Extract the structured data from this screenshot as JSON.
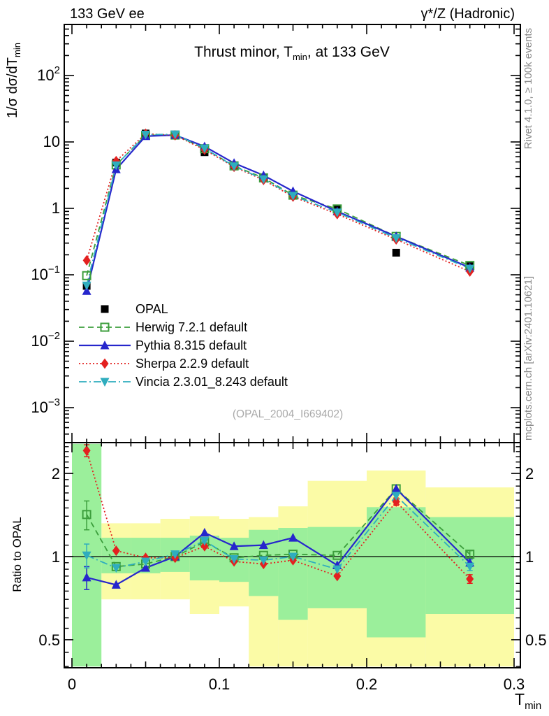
{
  "header": {
    "left": "133 GeV ee",
    "right": "γ*/Z (Hadronic)"
  },
  "side_notes": {
    "top": "Rivet 4.1.0, ≥ 100k events",
    "bottom": "mcplots.cern.ch [arXiv:2401.10621]",
    "color": "#8a8a8a"
  },
  "watermark": {
    "text": "(OPAL_2004_I669402)",
    "color": "#aaaaaa"
  },
  "titles": {
    "main_title_pre": "Thrust minor, T",
    "main_title_sub": "min",
    "main_title_post": ", at 133 GeV",
    "main_title_full": "Thrust minor, T_min, at 133 GeV",
    "y_main_pre": "1/σ  dσ/dT",
    "y_main_sub": "min",
    "y_main_full": "1/σ dσ/dT_min",
    "y_ratio": "Ratio to OPAL",
    "x_pre": "T",
    "x_sub": "min",
    "x_full": "T_min"
  },
  "legend": [
    {
      "label": "OPAL",
      "marker": "square",
      "line": "none",
      "color": "#000000"
    },
    {
      "label": "Herwig 7.2.1 default",
      "marker": "opensquare",
      "line": "dashed",
      "color": "#3c9e3c"
    },
    {
      "label": "Pythia 8.315 default",
      "marker": "triangle-up",
      "line": "solid",
      "color": "#2626cc"
    },
    {
      "label": "Sherpa 2.2.9 default",
      "marker": "diamond",
      "line": "dotted",
      "color": "#e3201f"
    },
    {
      "label": "Vincia 2.3.01_8.243 default",
      "marker": "triangle-down",
      "line": "dashdot",
      "color": "#2fadbe"
    }
  ],
  "colors": {
    "band_green": "#9bef9b",
    "band_yellow": "#fbfba6",
    "frame": "#000000"
  },
  "axis_ticks": {
    "x_labels": [
      {
        "t": 0,
        "label": "0"
      },
      {
        "t": 0.1,
        "label": "0.1"
      },
      {
        "t": 0.2,
        "label": "0.2"
      },
      {
        "t": 0.3,
        "label": "0.3"
      }
    ],
    "y_main_labels": [
      {
        "v": 100,
        "base": "10",
        "exp": "2"
      },
      {
        "v": 10,
        "plain": "10"
      },
      {
        "v": 1,
        "plain": "1"
      },
      {
        "v": 0.1,
        "base": "10",
        "exp": "−1"
      },
      {
        "v": 0.01,
        "base": "10",
        "exp": "−2"
      },
      {
        "v": 0.001,
        "base": "10",
        "exp": "−3"
      }
    ],
    "y_ratio_labels": [
      {
        "r": 2,
        "label": "2"
      },
      {
        "r": 1,
        "label": "1"
      },
      {
        "r": 0.5,
        "label": "0.5"
      }
    ]
  },
  "chart_data": [
    {
      "panel": "spectrum",
      "type": "line",
      "title": "Thrust minor, T_min, at 133 GeV",
      "xlabel": "T_min",
      "ylabel": "1/σ dσ/dT_min",
      "yscale": "log",
      "ylim": [
        0.0003,
        590
      ],
      "xlim": [
        0,
        0.3
      ],
      "x": [
        0.01,
        0.03,
        0.05,
        0.07,
        0.09,
        0.11,
        0.13,
        0.15,
        0.18,
        0.22,
        0.27
      ],
      "series": [
        {
          "name": "OPAL",
          "values": [
            0.068,
            4.9,
            13.4,
            12.7,
            7.0,
            4.4,
            2.85,
            1.55,
            0.97,
            0.215,
            0.135
          ]
        },
        {
          "name": "Herwig 7.2.1 default",
          "values": [
            0.097,
            4.51,
            12.6,
            12.7,
            7.91,
            4.36,
            2.88,
            1.58,
            0.98,
            0.378,
            0.138
          ]
        },
        {
          "name": "Pythia 8.315 default",
          "values": [
            0.057,
            3.87,
            12.2,
            12.7,
            8.54,
            4.8,
            3.14,
            1.81,
            0.9,
            0.378,
            0.128
          ]
        },
        {
          "name": "Sherpa 2.2.9 default",
          "values": [
            0.165,
            5.15,
            13.3,
            12.6,
            7.63,
            4.22,
            2.68,
            1.5,
            0.82,
            0.34,
            0.112
          ]
        },
        {
          "name": "Vincia 2.3.01_8.243 default",
          "values": [
            0.069,
            4.46,
            12.9,
            13.0,
            7.98,
            4.31,
            2.76,
            1.55,
            0.87,
            0.357,
            0.124
          ]
        }
      ],
      "legend_position": "middle-left",
      "grid": false
    },
    {
      "panel": "ratio",
      "type": "line",
      "ylabel": "Ratio to OPAL",
      "yscale": "log",
      "ylim": [
        0.396,
        2.56
      ],
      "xlim": [
        0,
        0.3
      ],
      "x": [
        0.01,
        0.03,
        0.05,
        0.07,
        0.09,
        0.11,
        0.13,
        0.15,
        0.18,
        0.22,
        0.27
      ],
      "bin_edges": [
        0,
        0.02,
        0.04,
        0.06,
        0.08,
        0.1,
        0.12,
        0.14,
        0.16,
        0.2,
        0.24,
        0.3
      ],
      "reference_line": 1,
      "series": [
        {
          "name": "Herwig 7.2.1 default",
          "values": [
            1.42,
            0.92,
            0.94,
            1.0,
            1.13,
            0.99,
            1.01,
            1.02,
            1.01,
            1.76,
            1.02
          ],
          "err": [
            0.17,
            0,
            0,
            0,
            0,
            0,
            0,
            0,
            0,
            0.06,
            0.03
          ]
        },
        {
          "name": "Pythia 8.315 default",
          "values": [
            0.84,
            0.79,
            0.91,
            1.0,
            1.22,
            1.09,
            1.1,
            1.17,
            0.93,
            1.76,
            0.95
          ],
          "err": [
            0.08,
            0,
            0,
            0,
            0,
            0,
            0,
            0,
            0,
            0.06,
            0.03
          ]
        },
        {
          "name": "Sherpa 2.2.9 default",
          "values": [
            2.42,
            1.05,
            0.99,
            0.99,
            1.09,
            0.96,
            0.94,
            0.97,
            0.85,
            1.58,
            0.83
          ],
          "err": [
            0.12,
            0,
            0,
            0,
            0,
            0,
            0,
            0,
            0,
            0.05,
            0.03
          ]
        },
        {
          "name": "Vincia 2.3.01_8.243 default",
          "values": [
            1.01,
            0.91,
            0.96,
            1.02,
            1.14,
            0.98,
            0.97,
            1.0,
            0.9,
            1.66,
            0.92
          ],
          "err": [
            0.1,
            0,
            0,
            0,
            0,
            0,
            0,
            0,
            0,
            0.05,
            0.03
          ]
        }
      ],
      "bands": {
        "green": [
          [
            0.4,
            2.56
          ],
          [
            0.87,
            1.17
          ],
          [
            0.87,
            1.17
          ],
          [
            0.88,
            1.17
          ],
          [
            0.82,
            1.19
          ],
          [
            0.81,
            1.17
          ],
          [
            0.72,
            1.25
          ],
          [
            0.59,
            1.27
          ],
          [
            0.65,
            1.28
          ],
          [
            0.51,
            1.51
          ],
          [
            0.62,
            1.39
          ]
        ],
        "yellow": [
          null,
          [
            0.7,
            1.32
          ],
          [
            0.7,
            1.32
          ],
          [
            0.7,
            1.37
          ],
          [
            0.62,
            1.4
          ],
          [
            0.66,
            1.37
          ],
          [
            0.4,
            1.39
          ],
          [
            0.4,
            1.52
          ],
          [
            0.4,
            1.88
          ],
          [
            0.4,
            2.05
          ],
          [
            0.4,
            1.78
          ]
        ]
      }
    }
  ]
}
